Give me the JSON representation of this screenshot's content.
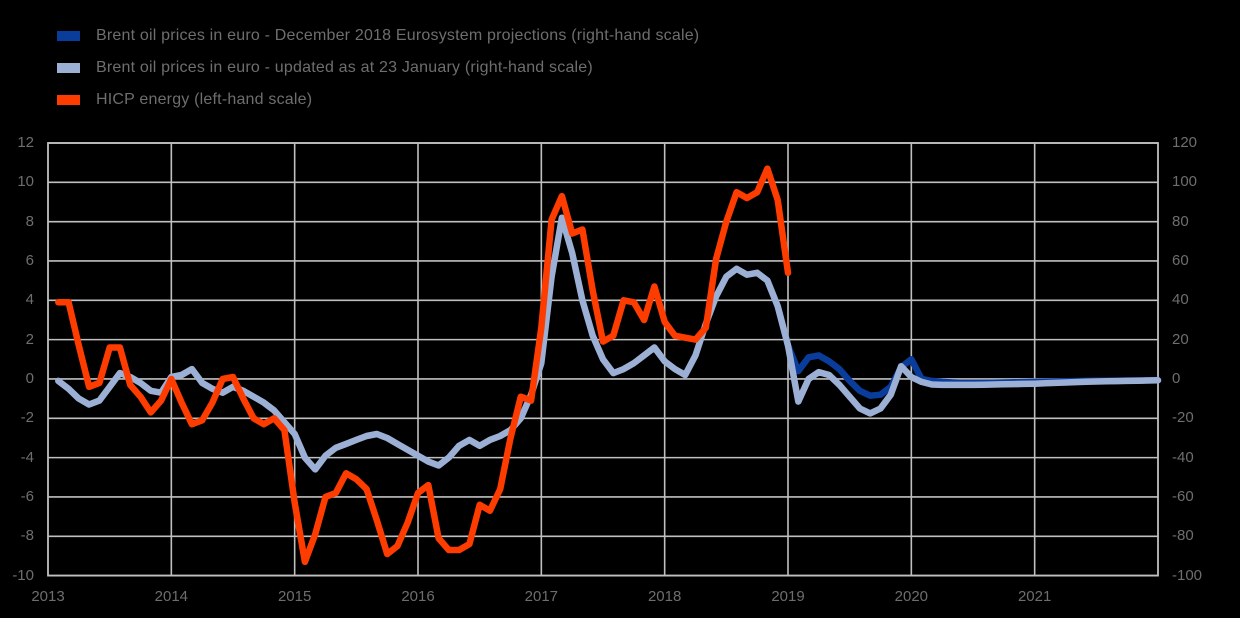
{
  "legend": {
    "items": [
      {
        "label": "Brent oil prices in euro - December 2018 Eurosystem projections (right-hand scale)",
        "color": "#0A3D9B"
      },
      {
        "label": "Brent oil prices in euro - updated as at 23 January (right-hand scale)",
        "color": "#9CB0D6"
      },
      {
        "label": "HICP energy (left-hand scale)",
        "color": "#FF3C00"
      }
    ]
  },
  "colors": {
    "background": "#000000",
    "gridline": "#C0C0C0",
    "axis_text": "#6E6E6E",
    "projection_line": "#0A3D9B",
    "updated_line": "#9CB0D6",
    "hicp_line": "#FF3C00"
  },
  "chart_data": {
    "type": "line",
    "title": "",
    "xlabel": "",
    "ylabel_left": "",
    "ylabel_right": "",
    "grid": true,
    "legend_position": "top-left",
    "x_axis": {
      "tick_labels": [
        "2013",
        "2014",
        "2015",
        "2016",
        "2017",
        "2018",
        "2019",
        "2020",
        "2021"
      ],
      "range": [
        2013,
        2022
      ]
    },
    "y_axis_left": {
      "tick_labels": [
        "12",
        "10",
        "8",
        "6",
        "4",
        "2",
        "0",
        "-2",
        "-4",
        "-6",
        "-8",
        "-10"
      ],
      "ticks": [
        12,
        10,
        8,
        6,
        4,
        2,
        0,
        -2,
        -4,
        -6,
        -8,
        -10
      ],
      "range": [
        -10,
        12
      ]
    },
    "y_axis_right": {
      "tick_labels": [
        "120",
        "100",
        "80",
        "60",
        "40",
        "20",
        "0",
        "-20",
        "-40",
        "-60",
        "-80",
        "-100"
      ],
      "ticks": [
        120,
        100,
        80,
        60,
        40,
        20,
        0,
        -20,
        -40,
        -60,
        -80,
        -100
      ],
      "range": [
        -100,
        120
      ]
    },
    "series": [
      {
        "name": "Brent oil prices in euro - December 2018 Eurosystem projections (right-hand scale)",
        "axis": "right",
        "color": "#0A3D9B",
        "frequency": "monthly",
        "start_year": 2018,
        "start_month": 10,
        "values": [
          50,
          37,
          17,
          4,
          11,
          12,
          9,
          5,
          -1,
          -6,
          -8.5,
          -8,
          -4,
          6,
          10,
          0,
          -1,
          -1.5,
          -1.8,
          -2,
          -2,
          -2,
          -1.9,
          -1.8,
          -1.7,
          -1.6,
          -1.5,
          -1.4,
          -1.3,
          -1.2,
          -1.1,
          -1,
          -0.95,
          -0.9,
          -0.85,
          -0.8,
          -0.75,
          -0.7,
          -0.6
        ]
      },
      {
        "name": "Brent oil prices in euro - updated as at 23 January (right-hand scale)",
        "axis": "right",
        "color": "#9CB0D6",
        "frequency": "monthly",
        "start_year": 2013,
        "start_month": 1,
        "values": [
          -1,
          -5,
          -10,
          -13,
          -11,
          -4,
          3,
          1,
          -2,
          -6,
          -7,
          1,
          2,
          5,
          -2,
          -5,
          -7,
          -4,
          -6,
          -9,
          -12,
          -16,
          -22,
          -28,
          -40,
          -46,
          -39,
          -35,
          -33,
          -31,
          -29,
          -28,
          -30,
          -33,
          -36,
          -39,
          -42,
          -44,
          -40,
          -34,
          -31,
          -34,
          -31,
          -29,
          -26,
          -20,
          -8,
          8,
          52,
          82,
          64,
          40,
          22,
          10,
          3,
          5,
          8,
          12,
          16,
          9,
          5,
          2,
          12,
          28,
          42,
          52,
          56,
          53,
          54,
          50,
          37,
          17,
          -11.5,
          0,
          3.5,
          2,
          -3,
          -9,
          -15,
          -17.5,
          -15,
          -8,
          6.5,
          1,
          -1.5,
          -2.8,
          -3,
          -3,
          -3,
          -3,
          -2.9,
          -2.8,
          -2.7,
          -2.6,
          -2.5,
          -2.4,
          -2.2,
          -2,
          -1.8,
          -1.6,
          -1.4,
          -1.3,
          -1.2,
          -1.1,
          -1,
          -0.9,
          -0.8,
          -0.7
        ]
      },
      {
        "name": "HICP energy (left-hand scale)",
        "axis": "left",
        "color": "#FF3C00",
        "frequency": "monthly",
        "start_year": 2013,
        "start_month": 1,
        "values": [
          3.9,
          3.9,
          1.7,
          -0.4,
          -0.2,
          1.6,
          1.6,
          -0.3,
          -0.9,
          -1.7,
          -1.1,
          0.0,
          -1.2,
          -2.3,
          -2.1,
          -1.2,
          0.0,
          0.1,
          -1.0,
          -2.0,
          -2.3,
          -2.0,
          -2.6,
          -6.3,
          -9.3,
          -7.9,
          -6.0,
          -5.8,
          -4.8,
          -5.1,
          -5.6,
          -7.2,
          -8.9,
          -8.5,
          -7.3,
          -5.8,
          -5.4,
          -8.1,
          -8.7,
          -8.7,
          -8.4,
          -6.4,
          -6.7,
          -5.6,
          -3.0,
          -0.9,
          -1.1,
          2.6,
          8.1,
          9.3,
          7.4,
          7.6,
          4.5,
          1.9,
          2.2,
          4.0,
          3.9,
          3.0,
          4.7,
          2.9,
          2.2,
          2.1,
          2.0,
          2.6,
          6.1,
          8.0,
          9.5,
          9.2,
          9.5,
          10.7,
          9.1,
          5.4
        ]
      }
    ]
  }
}
